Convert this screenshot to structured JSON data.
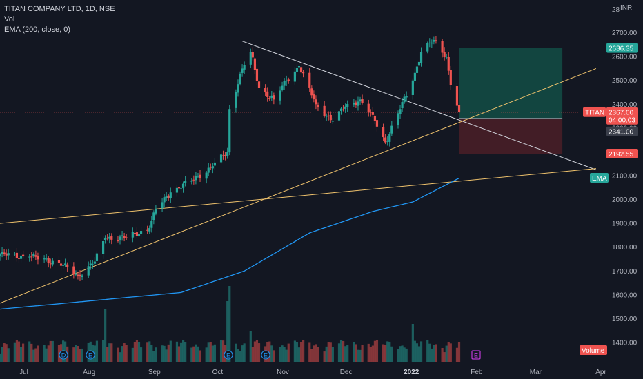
{
  "legend": {
    "symbol": "TITAN COMPANY LTD, 1D, NSE",
    "vol": "Vol",
    "ema": "EMA (200, close, 0)"
  },
  "currency": "INR",
  "axis_top_label": "28",
  "labels": {
    "ticker": "TITAN",
    "last_price": "2367.00",
    "countdown": "04:00:03",
    "target": "2636.35",
    "entry": "2341.00",
    "stop": "2192.55",
    "ema": "EMA",
    "volume": "Volume",
    "event_dividend": "D",
    "event_earnings": "E"
  },
  "colors": {
    "background": "#131722",
    "up": "#26a69a",
    "down": "#ef5350",
    "ema": "#2196f3",
    "trendline_yellow": "#f0c36d",
    "trendline_white": "#d1d4dc",
    "target_zone": "#134d45",
    "stop_zone": "#4b1f27"
  },
  "chart_data": {
    "type": "candlestick",
    "y_ticks": [
      1400,
      1500,
      1600,
      1700,
      1800,
      1900,
      2000,
      2100,
      2200,
      2300,
      2400,
      2500,
      2600,
      2700
    ],
    "y_tick_labels": [
      "1400.00",
      "1500.00",
      "1600.00",
      "1700.00",
      "1800.00",
      "1900.00",
      "2000.00",
      "2100.00",
      "2200.00",
      "2300.00",
      "2400.00",
      "2500.00",
      "2600.00",
      "2700.00"
    ],
    "x_ticks": [
      "Jul",
      "Aug",
      "Sep",
      "Oct",
      "Nov",
      "Dec",
      "2022",
      "Feb",
      "Mar",
      "Apr"
    ],
    "close_anchors": [
      {
        "d": "2021-06-21",
        "v": 1770
      },
      {
        "d": "2021-07-05",
        "v": 1760
      },
      {
        "d": "2021-07-19",
        "v": 1735
      },
      {
        "d": "2021-07-28",
        "v": 1680
      },
      {
        "d": "2021-08-05",
        "v": 1740
      },
      {
        "d": "2021-08-10",
        "v": 1840
      },
      {
        "d": "2021-08-20",
        "v": 1840
      },
      {
        "d": "2021-08-31",
        "v": 1880
      },
      {
        "d": "2021-09-03",
        "v": 1960
      },
      {
        "d": "2021-09-10",
        "v": 2030
      },
      {
        "d": "2021-09-20",
        "v": 2080
      },
      {
        "d": "2021-09-30",
        "v": 2140
      },
      {
        "d": "2021-10-07",
        "v": 2200
      },
      {
        "d": "2021-10-08",
        "v": 2380
      },
      {
        "d": "2021-10-14",
        "v": 2550
      },
      {
        "d": "2021-10-18",
        "v": 2620
      },
      {
        "d": "2021-10-22",
        "v": 2470
      },
      {
        "d": "2021-10-29",
        "v": 2420
      },
      {
        "d": "2021-11-04",
        "v": 2500
      },
      {
        "d": "2021-11-10",
        "v": 2560
      },
      {
        "d": "2021-11-18",
        "v": 2400
      },
      {
        "d": "2021-11-26",
        "v": 2330
      },
      {
        "d": "2021-12-02",
        "v": 2390
      },
      {
        "d": "2021-12-09",
        "v": 2420
      },
      {
        "d": "2021-12-16",
        "v": 2330
      },
      {
        "d": "2021-12-21",
        "v": 2240
      },
      {
        "d": "2021-12-28",
        "v": 2380
      },
      {
        "d": "2022-01-03",
        "v": 2500
      },
      {
        "d": "2022-01-07",
        "v": 2620
      },
      {
        "d": "2022-01-13",
        "v": 2670
      },
      {
        "d": "2022-01-19",
        "v": 2600
      },
      {
        "d": "2022-01-21",
        "v": 2480
      },
      {
        "d": "2022-01-25",
        "v": 2367
      }
    ],
    "ema_anchors": [
      {
        "d": "2021-06-21",
        "v": 1540
      },
      {
        "d": "2021-07-28",
        "v": 1570
      },
      {
        "d": "2021-09-15",
        "v": 1610
      },
      {
        "d": "2021-10-15",
        "v": 1700
      },
      {
        "d": "2021-11-15",
        "v": 1860
      },
      {
        "d": "2021-12-15",
        "v": 1950
      },
      {
        "d": "2022-01-03",
        "v": 1990
      },
      {
        "d": "2022-01-25",
        "v": 2090
      }
    ],
    "volume_spikes": [
      {
        "d": "2021-08-10",
        "v": 3.5
      },
      {
        "d": "2021-10-07",
        "v": 4.0
      },
      {
        "d": "2021-10-08",
        "v": 5.0
      },
      {
        "d": "2021-10-18",
        "v": 2.0
      },
      {
        "d": "2022-01-03",
        "v": 2.5
      }
    ],
    "trendlines": [
      {
        "name": "white-downtrend",
        "from": {
          "d": "2021-10-14",
          "v": 2665
        },
        "to": {
          "d": "2022-03-31",
          "v": 2125
        }
      },
      {
        "name": "yellow-rising",
        "from": {
          "d": "2021-06-21",
          "v": 1565
        },
        "to": {
          "d": "2022-03-31",
          "v": 2550
        }
      },
      {
        "name": "yellow-flat",
        "from": {
          "d": "2021-06-21",
          "v": 1900
        },
        "to": {
          "d": "2022-03-31",
          "v": 2130
        }
      }
    ],
    "position": {
      "start": "2022-01-25",
      "end": "2022-03-15",
      "target": 2636.35,
      "entry": 2341.0,
      "stop": 2192.55
    },
    "last_price": 2367.0,
    "grid": false
  }
}
